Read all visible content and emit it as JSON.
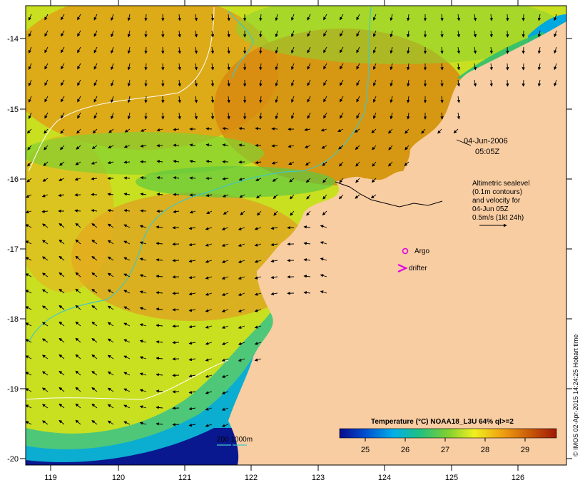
{
  "map": {
    "lon_ticks": [
      "119",
      "120",
      "121",
      "122",
      "123",
      "124",
      "125",
      "126"
    ],
    "lat_ticks": [
      "-14",
      "-15",
      "-16",
      "-17",
      "-18",
      "-19",
      "-20"
    ],
    "date_line1": "04-Jun-2006",
    "date_line2": "05:05Z",
    "legend_lines": [
      "Altimetric sealevel",
      "(0.1m contours)",
      "and velocity for",
      "04-Jun 05Z",
      "0.5m/s (1kt 24h)"
    ],
    "argo_label": "Argo",
    "drifter_label": "drifter",
    "contour_label": "200  1000m",
    "colorbar_title": "Temperature (°C) NOAA18_L3U 64% ql>=2",
    "colorbar_ticks": [
      "25",
      "26",
      "27",
      "28",
      "29"
    ],
    "credit": "© IMOS 02-Apr-2015 14:24:25 Hobart time"
  },
  "colors": {
    "land": "#f9cda2",
    "argo": "#e000e0",
    "drifter": "#e000e0",
    "contour_200": "#40c8c8",
    "contour_1000": "#ffffff",
    "sst_scale": [
      "#0a0a8c",
      "#0050d0",
      "#00b0e8",
      "#20c080",
      "#80d030",
      "#f0f020",
      "#f0a010",
      "#c85808",
      "#a01808"
    ]
  }
}
